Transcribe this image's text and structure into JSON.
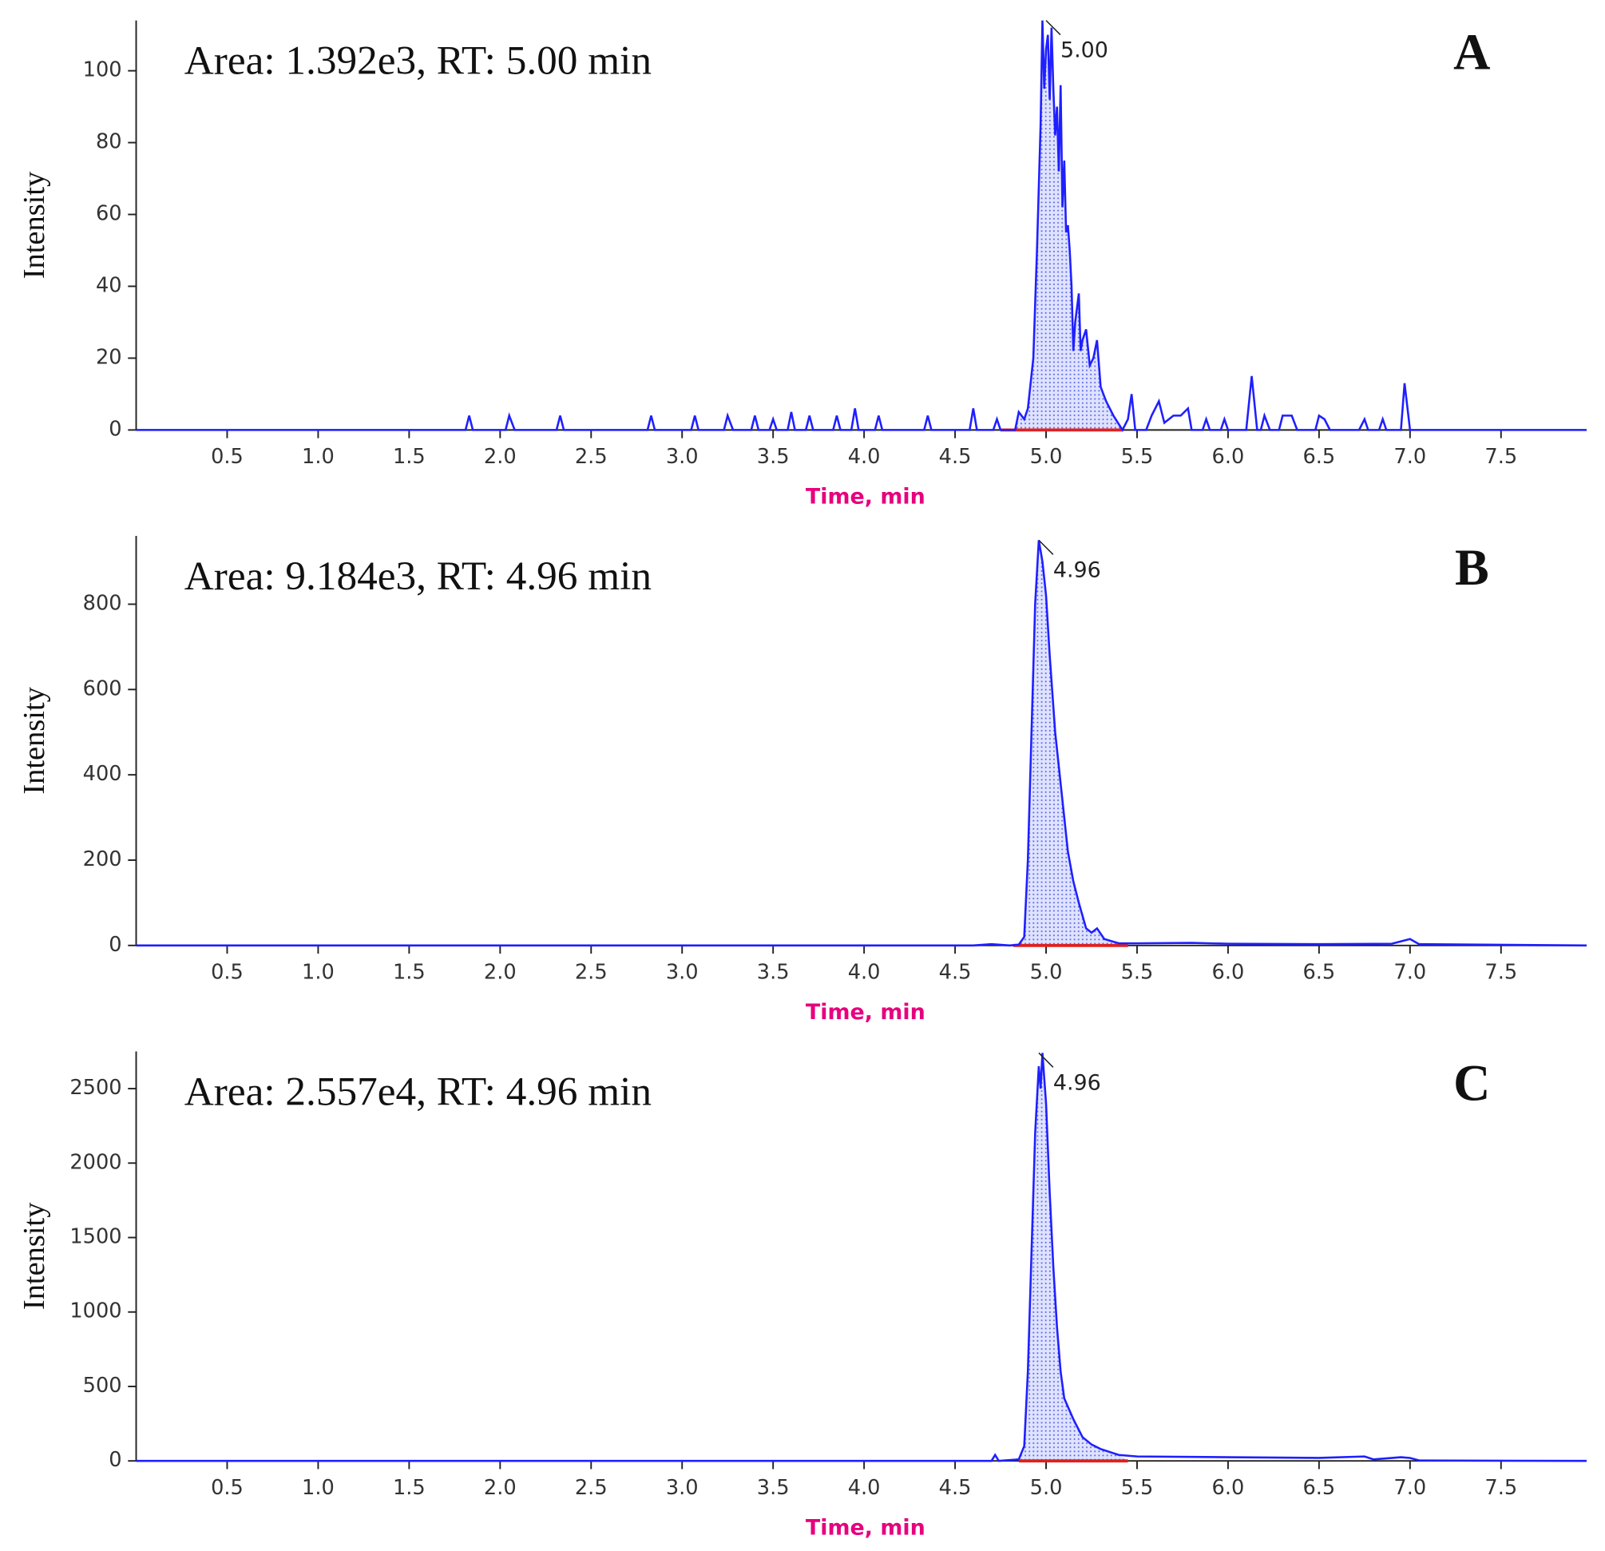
{
  "chart_data": [
    {
      "type": "line",
      "panel_label": "A",
      "annotation": "Area: 1.392e3, RT: 5.00 min",
      "peak_label": {
        "value": 5.0,
        "label": "5.00"
      },
      "xlabel": "Time, min",
      "ylabel": "Intensity",
      "color": "#1f1fff",
      "baseline_color": "#e02020",
      "integration_range": [
        4.75,
        5.42
      ],
      "x": [
        0,
        1.81,
        1.83,
        1.85,
        2.03,
        2.05,
        2.08,
        2.31,
        2.33,
        2.35,
        2.81,
        2.83,
        2.85,
        3.05,
        3.07,
        3.09,
        3.23,
        3.25,
        3.28,
        3.38,
        3.4,
        3.42,
        3.48,
        3.5,
        3.52,
        3.58,
        3.6,
        3.62,
        3.68,
        3.7,
        3.72,
        3.83,
        3.85,
        3.87,
        3.93,
        3.95,
        3.97,
        4.06,
        4.08,
        4.1,
        4.33,
        4.35,
        4.37,
        4.58,
        4.6,
        4.62,
        4.71,
        4.73,
        4.75,
        4.83,
        4.85,
        4.88,
        4.9,
        4.93,
        4.95,
        4.97,
        4.98,
        4.99,
        5.0,
        5.01,
        5.02,
        5.03,
        5.04,
        5.05,
        5.06,
        5.07,
        5.08,
        5.09,
        5.1,
        5.11,
        5.12,
        5.13,
        5.14,
        5.15,
        5.16,
        5.18,
        5.19,
        5.2,
        5.22,
        5.24,
        5.26,
        5.28,
        5.3,
        5.33,
        5.37,
        5.42,
        5.45,
        5.47,
        5.49,
        5.55,
        5.58,
        5.62,
        5.65,
        5.7,
        5.74,
        5.78,
        5.8,
        5.86,
        5.88,
        5.9,
        5.96,
        5.98,
        6.0,
        6.1,
        6.13,
        6.16,
        6.18,
        6.2,
        6.23,
        6.28,
        6.3,
        6.35,
        6.38,
        6.48,
        6.5,
        6.53,
        6.56,
        6.72,
        6.75,
        6.77,
        6.83,
        6.85,
        6.87,
        6.95,
        6.97,
        7.0,
        7.97
      ],
      "values": [
        0,
        0,
        4,
        0,
        0,
        4,
        0,
        0,
        4,
        0,
        0,
        4,
        0,
        0,
        4,
        0,
        0,
        4,
        0,
        0,
        4,
        0,
        0,
        3,
        0,
        0,
        5,
        0,
        0,
        4,
        0,
        0,
        4,
        0,
        0,
        6,
        0,
        0,
        4,
        0,
        0,
        4,
        0,
        0,
        6,
        0,
        0,
        3,
        0,
        0,
        5,
        3,
        6,
        20,
        50,
        85,
        114,
        95,
        106,
        110,
        92,
        112,
        95,
        82,
        90,
        72,
        96,
        62,
        75,
        55,
        57,
        50,
        40,
        22,
        30,
        38,
        22,
        25,
        28,
        18,
        20,
        25,
        12,
        8,
        4,
        0,
        3,
        10,
        0,
        0,
        4,
        8,
        2,
        4,
        4,
        6,
        0,
        0,
        3,
        0,
        0,
        3,
        0,
        0,
        15,
        0,
        0,
        4,
        0,
        0,
        4,
        4,
        0,
        0,
        4,
        3,
        0,
        0,
        3,
        0,
        0,
        3,
        0,
        0,
        13,
        0,
        0
      ],
      "xlim": [
        0,
        7.97
      ],
      "ylim": [
        0,
        114
      ],
      "xticks": [
        0.5,
        {
          "value": 1,
          "label": "1.0"
        },
        1.5,
        {
          "value": 2,
          "label": "2.0"
        },
        2.5,
        {
          "value": 3,
          "label": "3.0"
        },
        3.5,
        {
          "value": 4,
          "label": "4.0"
        },
        4.5,
        {
          "value": 5,
          "label": "5.0"
        },
        5.5,
        {
          "value": 6,
          "label": "6.0"
        },
        6.5,
        {
          "value": 7,
          "label": "7.0"
        },
        7.5
      ],
      "yticks": [
        0,
        20,
        40,
        60,
        80,
        100
      ]
    },
    {
      "type": "line",
      "panel_label": "B",
      "annotation": "Area: 9.184e3, RT: 4.96 min",
      "peak_label": {
        "value": 4.96,
        "label": "4.96"
      },
      "xlabel": "Time, min",
      "ylabel": "Intensity",
      "color": "#1f1fff",
      "baseline_color": "#e02020",
      "integration_range": [
        4.82,
        5.45
      ],
      "x": [
        0,
        4.6,
        4.7,
        4.8,
        4.85,
        4.88,
        4.9,
        4.92,
        4.94,
        4.96,
        4.98,
        5.0,
        5.02,
        5.05,
        5.08,
        5.1,
        5.12,
        5.15,
        5.18,
        5.2,
        5.22,
        5.25,
        5.28,
        5.32,
        5.4,
        5.5,
        5.8,
        6.0,
        6.5,
        6.9,
        7.0,
        7.05,
        7.97
      ],
      "values": [
        0,
        0,
        3,
        0,
        2,
        20,
        200,
        500,
        800,
        950,
        900,
        820,
        680,
        500,
        380,
        300,
        220,
        150,
        100,
        70,
        40,
        30,
        40,
        15,
        5,
        5,
        6,
        4,
        3,
        4,
        15,
        3,
        0
      ],
      "xlim": [
        0,
        7.97
      ],
      "ylim": [
        0,
        960
      ],
      "xticks": [
        0.5,
        {
          "value": 1,
          "label": "1.0"
        },
        1.5,
        {
          "value": 2,
          "label": "2.0"
        },
        2.5,
        {
          "value": 3,
          "label": "3.0"
        },
        3.5,
        {
          "value": 4,
          "label": "4.0"
        },
        4.5,
        {
          "value": 5,
          "label": "5.0"
        },
        5.5,
        {
          "value": 6,
          "label": "6.0"
        },
        6.5,
        {
          "value": 7,
          "label": "7.0"
        },
        7.5
      ],
      "yticks": [
        0,
        200,
        400,
        600,
        800
      ]
    },
    {
      "type": "line",
      "panel_label": "C",
      "annotation": "Area: 2.557e4, RT: 4.96 min",
      "peak_label": {
        "value": 4.96,
        "label": "4.96"
      },
      "xlabel": "Time, min",
      "ylabel": "Intensity",
      "color": "#1f1fff",
      "baseline_color": "#e02020",
      "integration_range": [
        4.85,
        5.45
      ],
      "x": [
        0,
        4.7,
        4.72,
        4.74,
        4.85,
        4.88,
        4.9,
        4.92,
        4.94,
        4.96,
        4.97,
        4.98,
        5.0,
        5.02,
        5.04,
        5.06,
        5.08,
        5.1,
        5.15,
        5.2,
        5.25,
        5.3,
        5.4,
        5.5,
        6.0,
        6.5,
        6.75,
        6.8,
        6.95,
        7.0,
        7.05,
        7.97
      ],
      "values": [
        0,
        0,
        40,
        0,
        10,
        100,
        600,
        1400,
        2200,
        2650,
        2500,
        2740,
        2400,
        1800,
        1300,
        900,
        600,
        420,
        280,
        160,
        110,
        80,
        40,
        30,
        25,
        20,
        30,
        10,
        25,
        20,
        3,
        0
      ],
      "xlim": [
        0,
        7.97
      ],
      "ylim": [
        0,
        2750
      ],
      "xticks": [
        0.5,
        {
          "value": 1,
          "label": "1.0"
        },
        1.5,
        {
          "value": 2,
          "label": "2.0"
        },
        2.5,
        {
          "value": 3,
          "label": "3.0"
        },
        3.5,
        {
          "value": 4,
          "label": "4.0"
        },
        4.5,
        {
          "value": 5,
          "label": "5.0"
        },
        5.5,
        {
          "value": 6,
          "label": "6.0"
        },
        6.5,
        {
          "value": 7,
          "label": "7.0"
        },
        7.5
      ],
      "yticks": [
        0,
        500,
        1000,
        1500,
        2000,
        2500
      ]
    }
  ]
}
